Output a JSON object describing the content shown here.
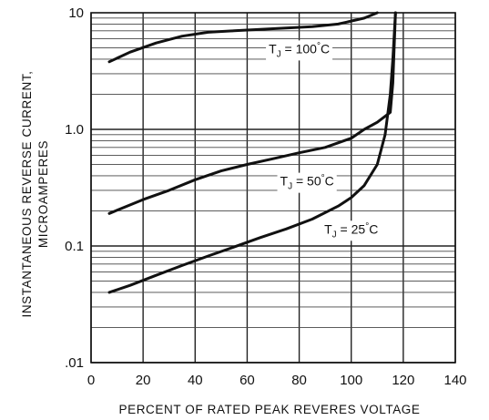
{
  "chart_data": {
    "type": "line",
    "x_scale": "linear",
    "y_scale": "log",
    "xlim": [
      0,
      140
    ],
    "ylim": [
      0.01,
      10
    ],
    "x_ticks": [
      0,
      20,
      40,
      60,
      80,
      100,
      120,
      140
    ],
    "x_tick_labels": [
      "0",
      "20",
      "40",
      "60",
      "80",
      "100",
      "120",
      "140"
    ],
    "y_ticks": [
      0.01,
      0.1,
      1,
      10
    ],
    "y_tick_labels": [
      ".01",
      "0.1",
      "1.0",
      "10"
    ],
    "xlabel": "PERCENT OF RATED PEAK REVERES VOLTAGE",
    "ylabel_lines": [
      "INSTANTANEOUS REVERSE CURRENT,",
      "MICROAMPERES"
    ],
    "grid": true,
    "series": [
      {
        "name": "TJ = 100°C",
        "label_parts": {
          "main": "T",
          "sub": "J",
          "rest": " = 100",
          "deg": "°",
          "unit": "C"
        },
        "x": [
          7,
          15,
          25,
          35,
          45,
          55,
          65,
          75,
          85,
          95,
          105,
          110
        ],
        "y": [
          3.8,
          4.6,
          5.5,
          6.3,
          6.8,
          7.0,
          7.2,
          7.4,
          7.6,
          8.0,
          9.0,
          10
        ]
      },
      {
        "name": "TJ = 50°C",
        "label_parts": {
          "main": "T",
          "sub": "J",
          "rest": " = 50",
          "deg": "°",
          "unit": "C"
        },
        "x": [
          7,
          20,
          30,
          40,
          50,
          60,
          70,
          80,
          90,
          100,
          105,
          110,
          115,
          116,
          117
        ],
        "y": [
          0.19,
          0.25,
          0.3,
          0.37,
          0.44,
          0.5,
          0.56,
          0.63,
          0.7,
          0.84,
          1.0,
          1.15,
          1.4,
          2.5,
          10
        ]
      },
      {
        "name": "TJ = 25°C",
        "label_parts": {
          "main": "T",
          "sub": "J",
          "rest": " = 25",
          "deg": "°",
          "unit": "C"
        },
        "x": [
          7,
          15,
          25,
          35,
          45,
          55,
          65,
          75,
          85,
          95,
          100,
          105,
          110,
          113,
          115,
          116,
          117
        ],
        "y": [
          0.04,
          0.046,
          0.056,
          0.068,
          0.082,
          0.098,
          0.118,
          0.14,
          0.17,
          0.22,
          0.26,
          0.33,
          0.5,
          0.9,
          2.0,
          4.0,
          10
        ]
      }
    ]
  }
}
